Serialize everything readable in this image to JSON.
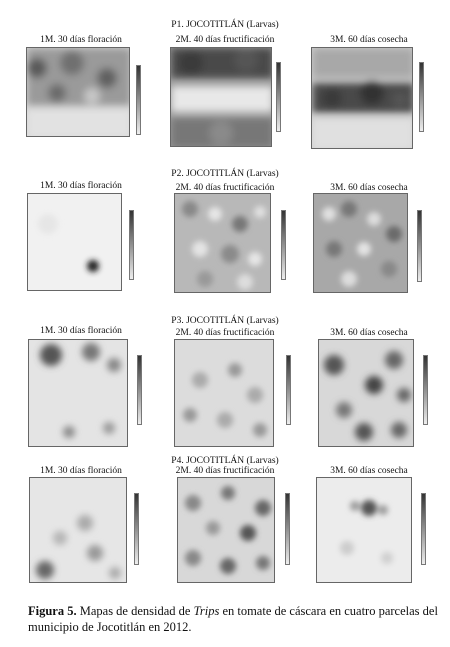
{
  "parcels": [
    {
      "title": "P1. JOCOTITLÁN (Larvas)",
      "maps": [
        {
          "title": "1M. 30 días floración"
        },
        {
          "title": "2M. 40 días fructificación"
        },
        {
          "title": "3M. 60 días cosecha"
        }
      ]
    },
    {
      "title": "P2. JOCOTITLÁN (Larvas)",
      "maps": [
        {
          "title": "1M. 30 días floración"
        },
        {
          "title": "2M. 40 días fructificación"
        },
        {
          "title": "3M. 60 días cosecha"
        }
      ]
    },
    {
      "title": "P3. JOCOTITLÁN (Larvas)",
      "maps": [
        {
          "title": "1M. 30 días floración"
        },
        {
          "title": "2M. 40 días fructificación"
        },
        {
          "title": "3M. 60 días cosecha"
        }
      ]
    },
    {
      "title": "P4. JOCOTITLÁN (Larvas)",
      "maps": [
        {
          "title": "1M. 30 días floración"
        },
        {
          "title": "2M. 40 días fructificación"
        },
        {
          "title": "3M. 60 días cosecha"
        }
      ]
    }
  ],
  "caption": {
    "label": "Figura 5.",
    "text_before": " Mapas de densidad de ",
    "italic": "Trips",
    "text_after": " en tomate de cáscara en cuatro parcelas del municipio de Jocotitlán en 2012."
  }
}
